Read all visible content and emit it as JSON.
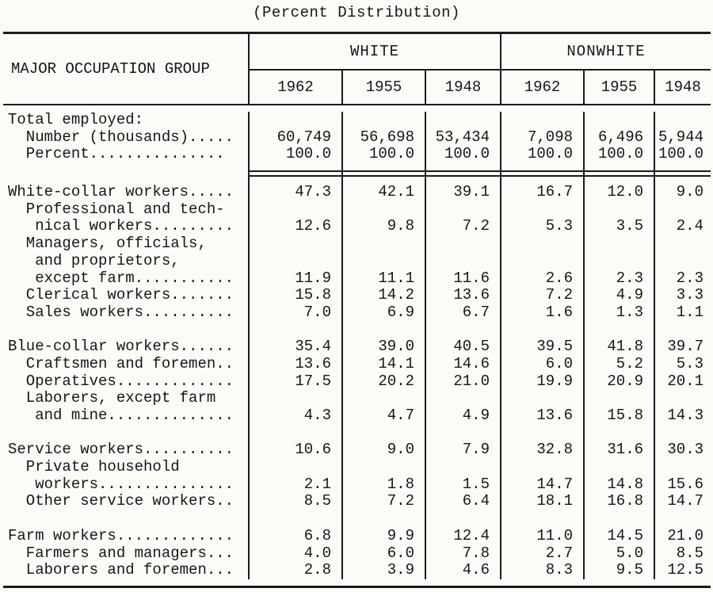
{
  "title": "(Percent Distribution)",
  "table": {
    "row_header": "MAJOR OCCUPATION GROUP",
    "groups": [
      {
        "label": "WHITE"
      },
      {
        "label": "NONWHITE"
      }
    ],
    "years": [
      "1962",
      "1955",
      "1948",
      "1962",
      "1955",
      "1948"
    ],
    "rows": [
      {
        "type": "data",
        "label": "Total employed:",
        "values": [
          "",
          "",
          "",
          "",
          "",
          ""
        ]
      },
      {
        "type": "data",
        "label": "  Number (thousands).....",
        "values": [
          "60,749",
          "56,698",
          "53,434",
          "7,098",
          "6,496",
          "5,944"
        ]
      },
      {
        "type": "data",
        "label": "  Percent...............",
        "values": [
          "100.0",
          "100.0",
          "100.0",
          "100.0",
          "100.0",
          "100.0"
        ]
      },
      {
        "type": "rule"
      },
      {
        "type": "data",
        "label": "White-collar workers.....",
        "values": [
          "47.3",
          "42.1",
          "39.1",
          "16.7",
          "12.0",
          "9.0"
        ]
      },
      {
        "type": "data",
        "label": "  Professional and tech-",
        "values": [
          "",
          "",
          "",
          "",
          "",
          ""
        ]
      },
      {
        "type": "data",
        "label": "   nical workers.........",
        "values": [
          "12.6",
          "9.8",
          "7.2",
          "5.3",
          "3.5",
          "2.4"
        ]
      },
      {
        "type": "data",
        "label": "  Managers, officials,",
        "values": [
          "",
          "",
          "",
          "",
          "",
          ""
        ]
      },
      {
        "type": "data",
        "label": "   and proprietors,",
        "values": [
          "",
          "",
          "",
          "",
          "",
          ""
        ]
      },
      {
        "type": "data",
        "label": "   except farm...........",
        "values": [
          "11.9",
          "11.1",
          "11.6",
          "2.6",
          "2.3",
          "2.3"
        ]
      },
      {
        "type": "data",
        "label": "  Clerical workers.......",
        "values": [
          "15.8",
          "14.2",
          "13.6",
          "7.2",
          "4.9",
          "3.3"
        ]
      },
      {
        "type": "data",
        "label": "  Sales workers..........",
        "values": [
          "7.0",
          "6.9",
          "6.7",
          "1.6",
          "1.3",
          "1.1"
        ]
      },
      {
        "type": "gap"
      },
      {
        "type": "data",
        "label": "Blue-collar workers......",
        "values": [
          "35.4",
          "39.0",
          "40.5",
          "39.5",
          "41.8",
          "39.7"
        ]
      },
      {
        "type": "data",
        "label": "  Craftsmen and foremen..",
        "values": [
          "13.6",
          "14.1",
          "14.6",
          "6.0",
          "5.2",
          "5.3"
        ]
      },
      {
        "type": "data",
        "label": "  Operatives.............",
        "values": [
          "17.5",
          "20.2",
          "21.0",
          "19.9",
          "20.9",
          "20.1"
        ]
      },
      {
        "type": "data",
        "label": "  Laborers, except farm",
        "values": [
          "",
          "",
          "",
          "",
          "",
          ""
        ]
      },
      {
        "type": "data",
        "label": "   and mine..............",
        "values": [
          "4.3",
          "4.7",
          "4.9",
          "13.6",
          "15.8",
          "14.3"
        ]
      },
      {
        "type": "gap"
      },
      {
        "type": "data",
        "label": "Service workers..........",
        "values": [
          "10.6",
          "9.0",
          "7.9",
          "32.8",
          "31.6",
          "30.3"
        ]
      },
      {
        "type": "data",
        "label": "  Private household",
        "values": [
          "",
          "",
          "",
          "",
          "",
          ""
        ]
      },
      {
        "type": "data",
        "label": "   workers...............",
        "values": [
          "2.1",
          "1.8",
          "1.5",
          "14.7",
          "14.8",
          "15.6"
        ]
      },
      {
        "type": "data",
        "label": "  Other service workers..",
        "values": [
          "8.5",
          "7.2",
          "6.4",
          "18.1",
          "16.8",
          "14.7"
        ]
      },
      {
        "type": "gap"
      },
      {
        "type": "data",
        "label": "Farm workers.............",
        "values": [
          "6.8",
          "9.9",
          "12.4",
          "11.0",
          "14.5",
          "21.0"
        ]
      },
      {
        "type": "data",
        "label": "  Farmers and managers...",
        "values": [
          "4.0",
          "6.0",
          "7.8",
          "2.7",
          "5.0",
          "8.5"
        ]
      },
      {
        "type": "data",
        "label": "  Laborers and foremen...",
        "values": [
          "2.8",
          "3.9",
          "4.6",
          "8.3",
          "9.5",
          "12.5"
        ]
      }
    ]
  }
}
